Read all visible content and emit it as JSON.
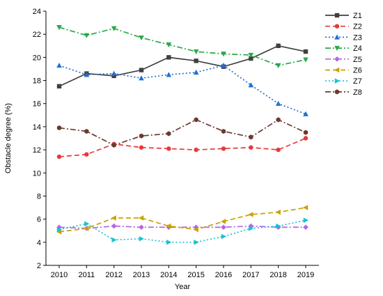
{
  "chart_data": {
    "type": "line",
    "xlabel": "Year",
    "ylabel": "Obstacle degree (%)",
    "x": [
      2010,
      2011,
      2012,
      2013,
      2014,
      2015,
      2016,
      2017,
      2018,
      2019
    ],
    "ylim": [
      2,
      24
    ],
    "yticks": [
      2,
      4,
      6,
      8,
      10,
      12,
      14,
      16,
      18,
      20,
      22,
      24
    ],
    "grid": false,
    "legend_position": "right",
    "series": [
      {
        "name": "Z1",
        "color": "#404040",
        "dash": "solid",
        "marker": "square",
        "values": [
          17.5,
          18.6,
          18.4,
          18.9,
          20.0,
          19.7,
          19.2,
          19.9,
          21.0,
          20.5
        ]
      },
      {
        "name": "Z2",
        "color": "#e8393a",
        "dash": "long-dash",
        "marker": "circle",
        "values": [
          11.4,
          11.6,
          12.5,
          12.2,
          12.1,
          12.0,
          12.1,
          12.2,
          12.0,
          13.0
        ]
      },
      {
        "name": "Z3",
        "color": "#1f6fd6",
        "dash": "dot",
        "marker": "triangle-up",
        "values": [
          19.3,
          18.5,
          18.6,
          18.2,
          18.5,
          18.7,
          19.3,
          17.6,
          16.0,
          15.1
        ]
      },
      {
        "name": "Z4",
        "color": "#2aa84a",
        "dash": "dash-dot",
        "marker": "triangle-down",
        "values": [
          22.6,
          21.9,
          22.5,
          21.7,
          21.1,
          20.5,
          20.3,
          20.2,
          19.3,
          19.8
        ]
      },
      {
        "name": "Z5",
        "color": "#b565e6",
        "dash": "dash-dot",
        "marker": "diamond",
        "values": [
          5.3,
          5.2,
          5.4,
          5.3,
          5.3,
          5.3,
          5.3,
          5.4,
          5.3,
          5.3
        ]
      },
      {
        "name": "Z6",
        "color": "#c9a200",
        "dash": "long-dash",
        "marker": "triangle-left",
        "values": [
          4.9,
          5.2,
          6.1,
          6.1,
          5.4,
          5.1,
          5.8,
          6.4,
          6.6,
          7.0
        ]
      },
      {
        "name": "Z7",
        "color": "#17c3d3",
        "dash": "dot",
        "marker": "triangle-right",
        "values": [
          5.1,
          5.6,
          4.2,
          4.3,
          4.0,
          4.0,
          4.5,
          5.2,
          5.4,
          5.9
        ]
      },
      {
        "name": "Z8",
        "color": "#6b3a2e",
        "dash": "dash-dot",
        "marker": "hexagon",
        "values": [
          13.9,
          13.6,
          12.4,
          13.2,
          13.4,
          14.6,
          13.6,
          13.1,
          14.6,
          13.5
        ]
      }
    ]
  }
}
